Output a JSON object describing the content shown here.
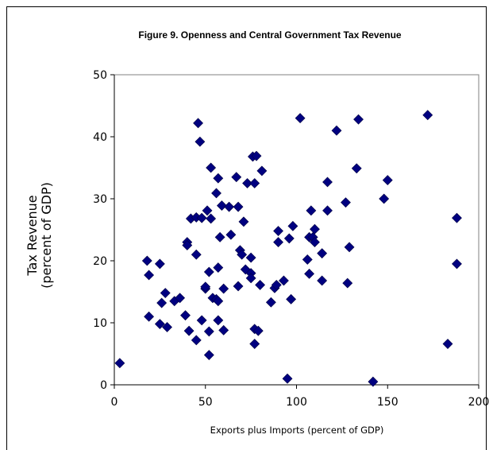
{
  "chart_data": {
    "type": "scatter",
    "title": "Figure 9.  Openness and Central Government Tax Revenue",
    "xlabel": "Exports plus Imports (percent of GDP)",
    "ylabel_line1": "Tax Revenue",
    "ylabel_line2": "(percent of GDP)",
    "xlim": [
      0,
      200
    ],
    "ylim": [
      0,
      50
    ],
    "x_ticks": [
      "0",
      "50",
      "100",
      "150",
      "200"
    ],
    "y_ticks": [
      "0",
      "10",
      "20",
      "30",
      "40",
      "50"
    ],
    "grid": false,
    "legend": "none",
    "marker_color": "#000080",
    "points": [
      [
        3,
        3.5
      ],
      [
        18,
        20
      ],
      [
        19,
        17.7
      ],
      [
        19,
        11
      ],
      [
        25,
        19.5
      ],
      [
        25,
        9.8
      ],
      [
        26,
        13.2
      ],
      [
        28,
        14.8
      ],
      [
        29,
        9.3
      ],
      [
        33,
        13.5
      ],
      [
        36,
        14
      ],
      [
        39,
        11.2
      ],
      [
        40,
        23
      ],
      [
        40,
        22.5
      ],
      [
        41,
        8.7
      ],
      [
        42,
        26.8
      ],
      [
        45,
        27
      ],
      [
        45,
        21
      ],
      [
        45,
        7.2
      ],
      [
        46,
        42.2
      ],
      [
        47,
        39.2
      ],
      [
        48,
        10.4
      ],
      [
        48,
        26.9
      ],
      [
        50,
        15.5
      ],
      [
        50,
        15.8
      ],
      [
        51,
        28.1
      ],
      [
        52,
        18.2
      ],
      [
        52,
        8.6
      ],
      [
        52,
        4.8
      ],
      [
        53,
        35
      ],
      [
        53,
        26.8
      ],
      [
        54,
        14
      ],
      [
        56,
        13.8
      ],
      [
        56,
        30.9
      ],
      [
        57,
        33.3
      ],
      [
        57,
        18.9
      ],
      [
        57,
        13.5
      ],
      [
        57,
        10.4
      ],
      [
        58,
        23.8
      ],
      [
        59,
        28.9
      ],
      [
        60,
        8.8
      ],
      [
        60,
        15.5
      ],
      [
        63,
        28.7
      ],
      [
        64,
        24.2
      ],
      [
        67,
        33.5
      ],
      [
        68,
        28.7
      ],
      [
        68,
        15.9
      ],
      [
        69,
        21.7
      ],
      [
        70,
        21
      ],
      [
        71,
        26.3
      ],
      [
        72,
        18.6
      ],
      [
        73,
        32.5
      ],
      [
        75,
        18
      ],
      [
        75,
        17.2
      ],
      [
        75,
        20.5
      ],
      [
        76,
        36.8
      ],
      [
        77,
        32.5
      ],
      [
        77,
        9
      ],
      [
        77,
        6.6
      ],
      [
        78,
        36.9
      ],
      [
        79,
        8.7
      ],
      [
        80,
        16.1
      ],
      [
        81,
        34.5
      ],
      [
        86,
        13.3
      ],
      [
        88,
        15.6
      ],
      [
        89,
        16.1
      ],
      [
        90,
        24.8
      ],
      [
        90,
        23
      ],
      [
        93,
        16.8
      ],
      [
        95,
        1
      ],
      [
        96,
        23.6
      ],
      [
        97,
        13.8
      ],
      [
        98,
        25.6
      ],
      [
        102,
        43
      ],
      [
        106,
        20.2
      ],
      [
        107,
        23.8
      ],
      [
        107,
        17.9
      ],
      [
        108,
        28.1
      ],
      [
        109,
        23.8
      ],
      [
        110,
        23
      ],
      [
        110,
        25.1
      ],
      [
        114,
        21.2
      ],
      [
        114,
        16.8
      ],
      [
        117,
        32.7
      ],
      [
        117,
        28.1
      ],
      [
        122,
        41
      ],
      [
        127,
        29.4
      ],
      [
        128,
        16.4
      ],
      [
        129,
        22.2
      ],
      [
        133,
        34.9
      ],
      [
        134,
        42.8
      ],
      [
        142,
        0.5
      ],
      [
        148,
        30
      ],
      [
        150,
        33
      ],
      [
        172,
        43.5
      ],
      [
        183,
        6.6
      ],
      [
        188,
        26.9
      ],
      [
        188,
        19.5
      ]
    ]
  }
}
